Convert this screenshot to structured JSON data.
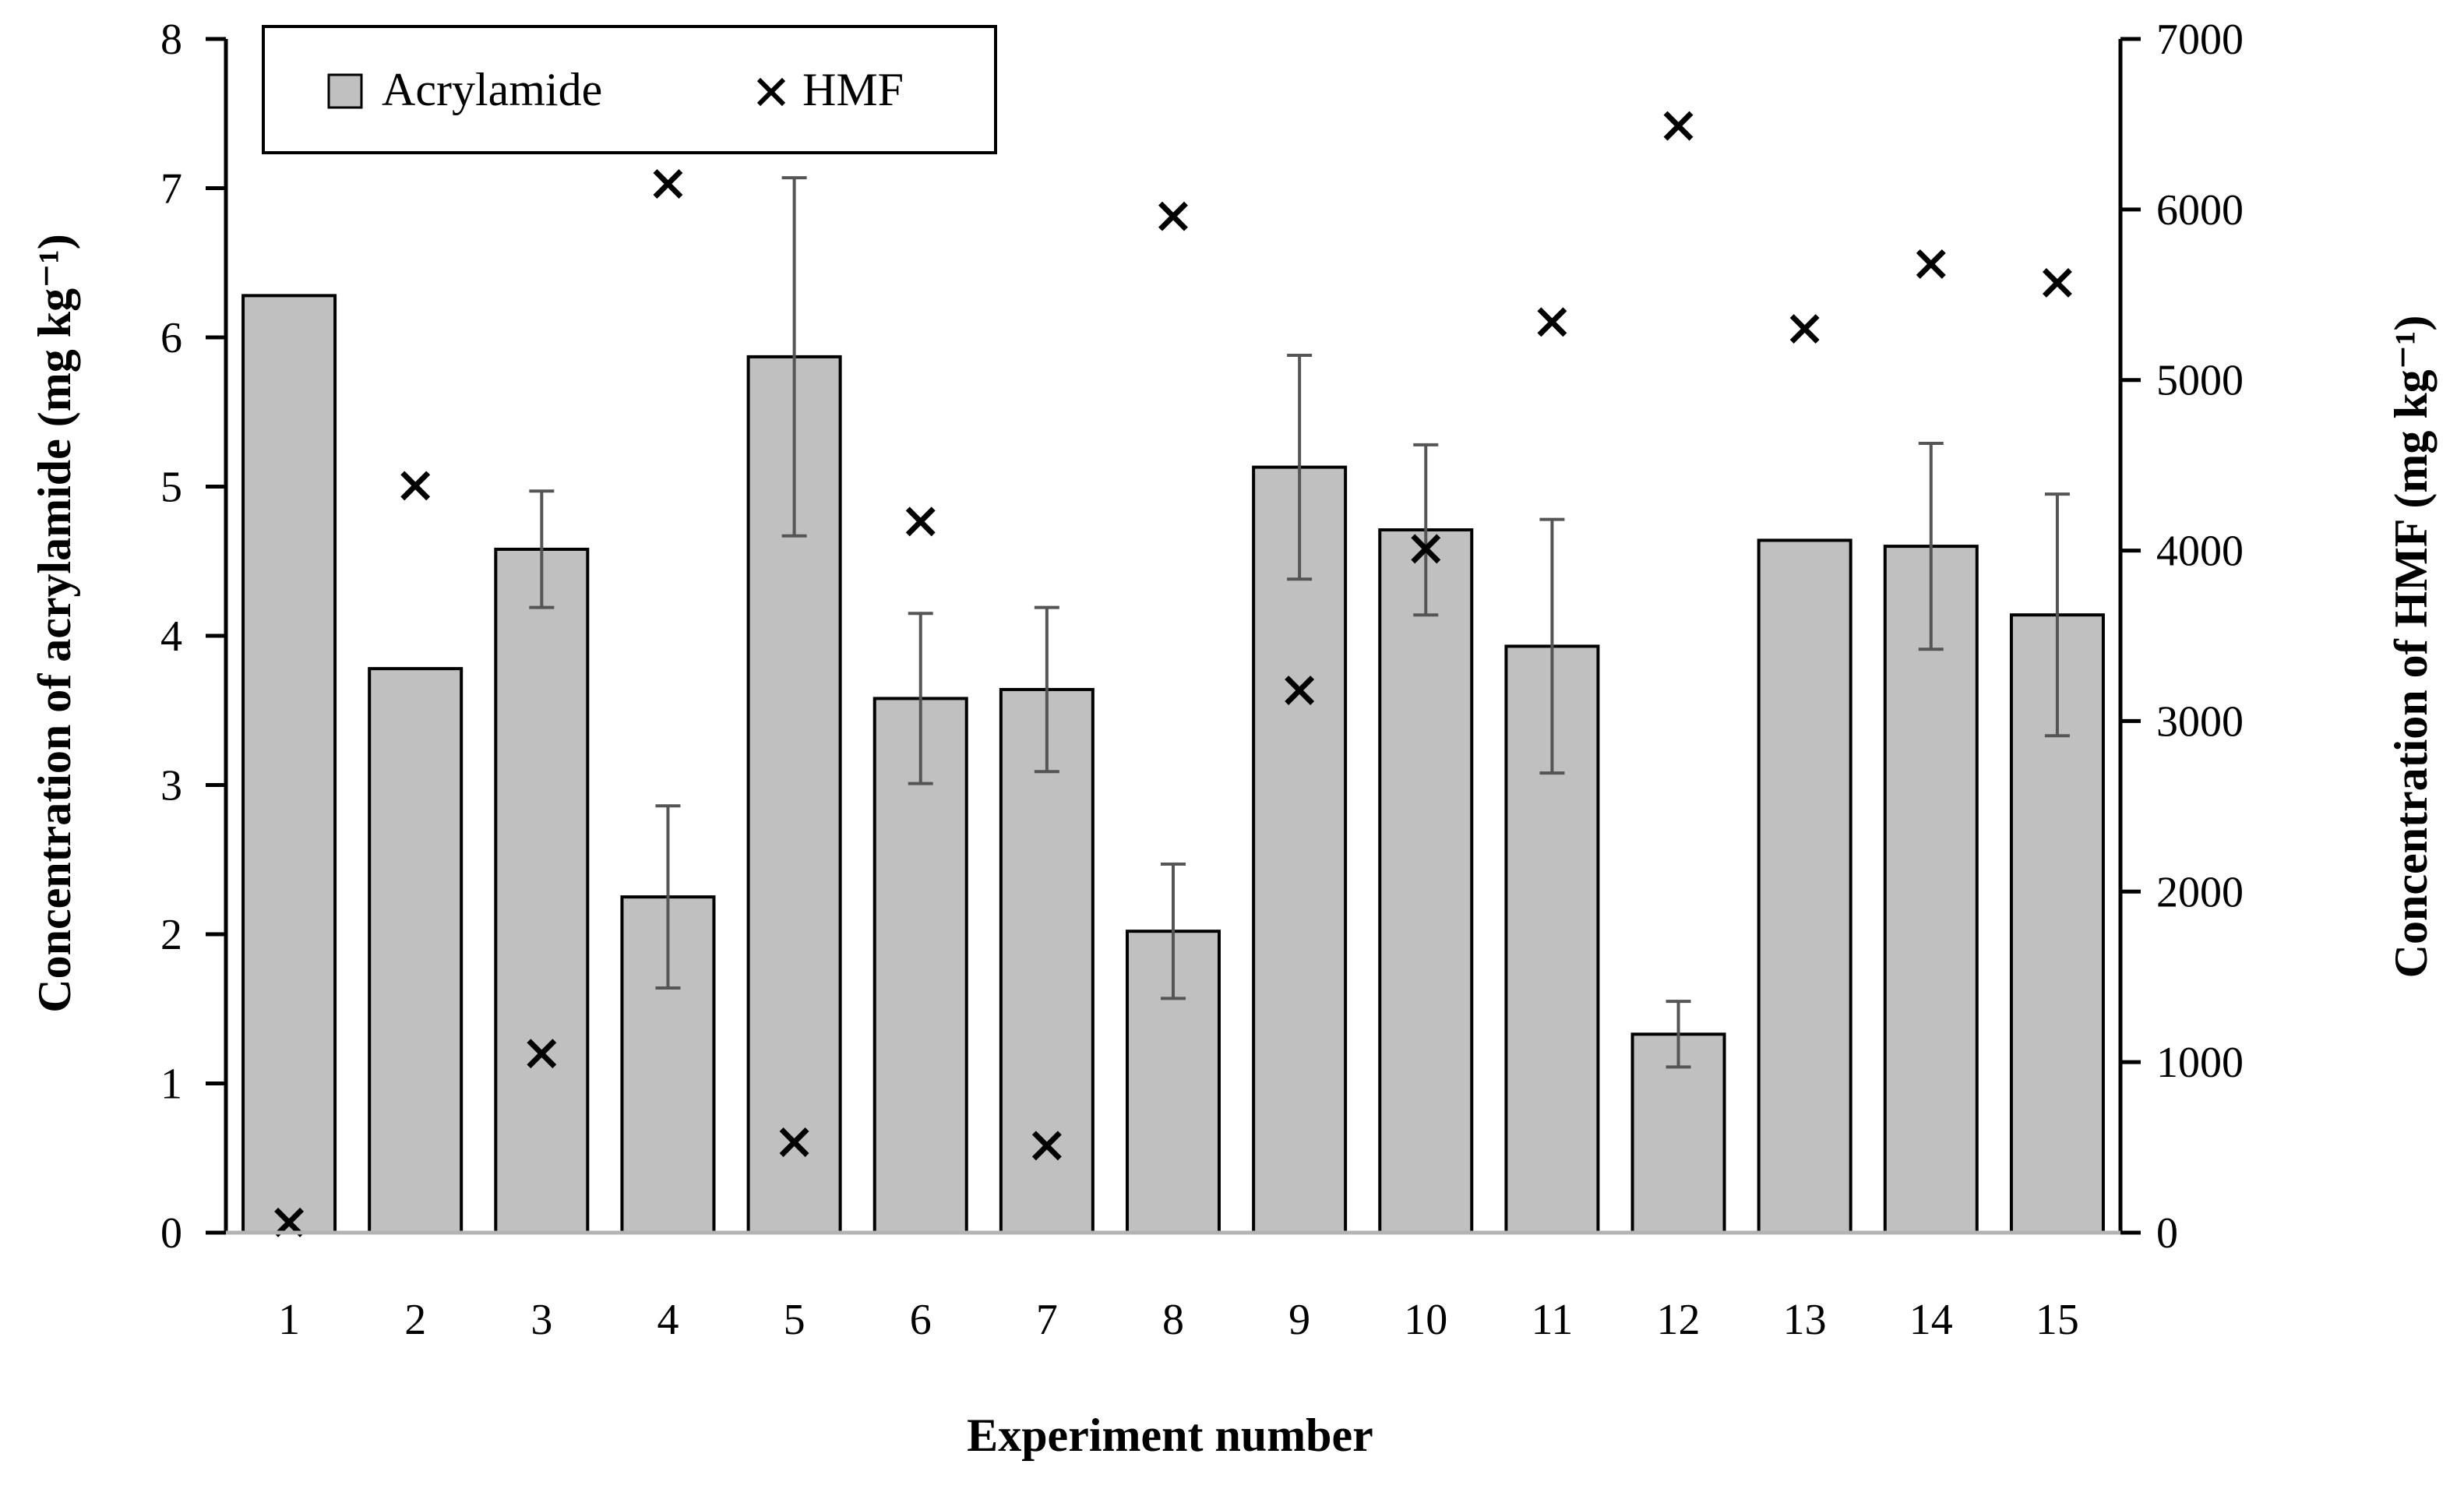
{
  "chart_data": {
    "type": "bar",
    "categories": [
      "1",
      "2",
      "3",
      "4",
      "5",
      "6",
      "7",
      "8",
      "9",
      "10",
      "11",
      "12",
      "13",
      "14",
      "15"
    ],
    "xlabel": "Experiment number",
    "ylabel": "Concentration of acrylamide (mg kg⁻¹)",
    "y2label": "Concentration of HMF (mg kg⁻¹)",
    "ylim": [
      0,
      8
    ],
    "y2lim": [
      0,
      7000
    ],
    "yticks": [
      "0",
      "1",
      "2",
      "3",
      "4",
      "5",
      "6",
      "7",
      "8"
    ],
    "y2ticks": [
      "0",
      "1000",
      "2000",
      "3000",
      "4000",
      "5000",
      "6000",
      "7000"
    ],
    "grid": false,
    "legend_position": "top-left",
    "series": [
      {
        "name": "Acrylamide",
        "kind": "bar",
        "axis": "left",
        "color": "#c0c0c0",
        "values": [
          6.28,
          3.78,
          4.58,
          2.25,
          5.87,
          3.58,
          3.64,
          2.02,
          5.13,
          4.71,
          3.93,
          1.33,
          4.64,
          4.6,
          4.14
        ],
        "errors": [
          0.0,
          0.0,
          0.39,
          0.61,
          1.2,
          0.57,
          0.55,
          0.45,
          0.75,
          0.57,
          0.85,
          0.22,
          0.0,
          0.69,
          0.81
        ]
      },
      {
        "name": "HMF",
        "kind": "scatter",
        "axis": "right",
        "marker": "x",
        "color": "#000000",
        "values": [
          60,
          4380,
          1050,
          6150,
          530,
          4170,
          510,
          5960,
          3180,
          4010,
          5340,
          6490,
          5300,
          5680,
          5570
        ]
      }
    ]
  }
}
